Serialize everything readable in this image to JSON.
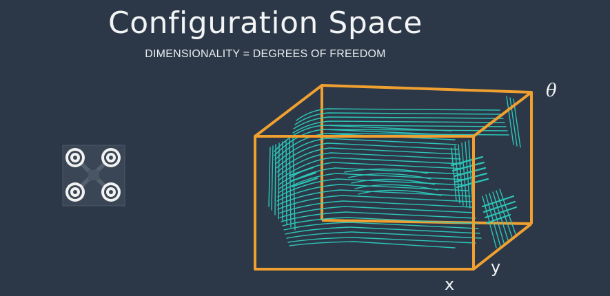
{
  "slide": {
    "title": "Configuration Space",
    "subtitle": "DIMENSIONALITY = DEGREES OF FREEDOM"
  },
  "quadrotor": {
    "icon": "quadrotor-icon",
    "rotor_count": 4
  },
  "config_space": {
    "axes": {
      "x": "x",
      "y": "y",
      "theta": "θ"
    },
    "colors": {
      "box": "#f0a030",
      "obstacle": "#2ed1c2",
      "background": "#2c3847"
    }
  }
}
